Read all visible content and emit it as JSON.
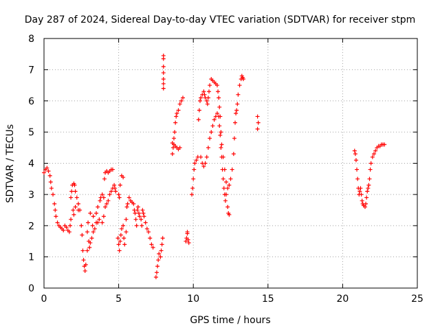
{
  "chart_data": {
    "type": "scatter",
    "title": "Day 287 of 2024, Sidereal Day-to-day VTEC variation (SDTVAR) for receiver stpm",
    "xlabel": "GPS time / hours",
    "ylabel": "SDTVAR / TECUs",
    "xlim": [
      0,
      25
    ],
    "ylim": [
      0,
      8
    ],
    "xticks": [
      0,
      5,
      10,
      15,
      20,
      25
    ],
    "yticks": [
      0,
      1,
      2,
      3,
      4,
      5,
      6,
      7,
      8
    ],
    "grid": true,
    "marker": "plus",
    "color": "#ff0000",
    "series": [
      {
        "name": "SDTVAR",
        "points": [
          [
            0.0,
            3.7
          ],
          [
            0.1,
            3.8
          ],
          [
            0.2,
            3.85
          ],
          [
            0.3,
            3.75
          ],
          [
            0.4,
            3.6
          ],
          [
            0.45,
            3.4
          ],
          [
            0.5,
            3.2
          ],
          [
            0.6,
            3.0
          ],
          [
            0.7,
            2.7
          ],
          [
            0.75,
            2.5
          ],
          [
            0.8,
            2.3
          ],
          [
            0.9,
            2.1
          ],
          [
            1.0,
            2.0
          ],
          [
            1.1,
            1.95
          ],
          [
            1.2,
            1.9
          ],
          [
            1.3,
            1.85
          ],
          [
            1.4,
            2.0
          ],
          [
            1.5,
            1.95
          ],
          [
            1.6,
            1.85
          ],
          [
            1.7,
            1.8
          ],
          [
            1.75,
            2.0
          ],
          [
            1.8,
            2.2
          ],
          [
            1.8,
            2.9
          ],
          [
            1.85,
            3.1
          ],
          [
            1.9,
            3.3
          ],
          [
            2.0,
            3.35
          ],
          [
            2.05,
            3.3
          ],
          [
            2.1,
            3.1
          ],
          [
            2.2,
            2.9
          ],
          [
            2.3,
            2.7
          ],
          [
            1.95,
            2.5
          ],
          [
            2.0,
            2.35
          ],
          [
            2.1,
            2.6
          ],
          [
            2.3,
            2.5
          ],
          [
            2.4,
            2.5
          ],
          [
            2.5,
            2.0
          ],
          [
            2.55,
            1.7
          ],
          [
            2.6,
            1.2
          ],
          [
            2.65,
            0.9
          ],
          [
            2.7,
            0.7
          ],
          [
            2.75,
            0.55
          ],
          [
            2.8,
            0.75
          ],
          [
            2.9,
            1.2
          ],
          [
            2.9,
            1.8
          ],
          [
            2.95,
            2.1
          ],
          [
            3.0,
            1.5
          ],
          [
            3.05,
            1.3
          ],
          [
            3.1,
            1.45
          ],
          [
            3.1,
            2.4
          ],
          [
            3.2,
            1.6
          ],
          [
            3.25,
            2.0
          ],
          [
            3.3,
            2.3
          ],
          [
            3.3,
            1.8
          ],
          [
            3.4,
            1.9
          ],
          [
            3.5,
            2.1
          ],
          [
            3.5,
            2.4
          ],
          [
            3.6,
            2.6
          ],
          [
            3.6,
            2.1
          ],
          [
            3.7,
            2.2
          ],
          [
            3.75,
            2.8
          ],
          [
            3.8,
            2.9
          ],
          [
            3.9,
            3.0
          ],
          [
            3.9,
            2.1
          ],
          [
            4.0,
            2.3
          ],
          [
            4.0,
            2.9
          ],
          [
            4.05,
            3.5
          ],
          [
            4.1,
            2.6
          ],
          [
            4.1,
            3.7
          ],
          [
            4.2,
            2.7
          ],
          [
            4.2,
            3.75
          ],
          [
            4.3,
            2.8
          ],
          [
            4.3,
            3.7
          ],
          [
            4.4,
            3.0
          ],
          [
            4.4,
            3.75
          ],
          [
            4.5,
            3.1
          ],
          [
            4.5,
            3.8
          ],
          [
            4.6,
            3.2
          ],
          [
            4.6,
            3.8
          ],
          [
            4.7,
            3.3
          ],
          [
            4.75,
            3.2
          ],
          [
            4.8,
            3.1
          ],
          [
            4.95,
            1.6
          ],
          [
            5.0,
            1.4
          ],
          [
            5.05,
            1.2
          ],
          [
            5.1,
            1.5
          ],
          [
            5.15,
            1.7
          ],
          [
            5.2,
            1.9
          ],
          [
            5.3,
            2.0
          ],
          [
            5.35,
            1.6
          ],
          [
            5.4,
            1.4
          ],
          [
            5.5,
            1.8
          ],
          [
            5.5,
            2.2
          ],
          [
            5.55,
            2.6
          ],
          [
            5.6,
            2.7
          ],
          [
            5.0,
            3.0
          ],
          [
            5.05,
            2.9
          ],
          [
            5.1,
            3.3
          ],
          [
            5.2,
            3.6
          ],
          [
            5.3,
            3.55
          ],
          [
            5.7,
            2.9
          ],
          [
            5.8,
            2.8
          ],
          [
            5.9,
            2.75
          ],
          [
            6.0,
            2.7
          ],
          [
            6.05,
            2.5
          ],
          [
            6.1,
            2.4
          ],
          [
            6.15,
            2.2
          ],
          [
            6.2,
            2.0
          ],
          [
            6.25,
            2.5
          ],
          [
            6.3,
            2.6
          ],
          [
            6.35,
            2.4
          ],
          [
            6.4,
            2.3
          ],
          [
            6.5,
            2.2
          ],
          [
            6.55,
            2.0
          ],
          [
            6.6,
            2.5
          ],
          [
            6.65,
            2.4
          ],
          [
            6.7,
            2.3
          ],
          [
            6.8,
            2.1
          ],
          [
            6.9,
            1.9
          ],
          [
            7.0,
            1.8
          ],
          [
            7.1,
            1.6
          ],
          [
            7.2,
            1.4
          ],
          [
            7.3,
            1.3
          ],
          [
            7.5,
            0.35
          ],
          [
            7.55,
            0.5
          ],
          [
            7.6,
            0.7
          ],
          [
            7.65,
            0.9
          ],
          [
            7.7,
            1.1
          ],
          [
            7.8,
            1.0
          ],
          [
            7.85,
            1.2
          ],
          [
            7.9,
            1.4
          ],
          [
            7.95,
            1.6
          ],
          [
            8.0,
            7.45
          ],
          [
            8.0,
            7.35
          ],
          [
            8.0,
            7.1
          ],
          [
            8.0,
            6.9
          ],
          [
            8.0,
            6.7
          ],
          [
            8.0,
            6.55
          ],
          [
            8.0,
            6.4
          ],
          [
            8.6,
            4.3
          ],
          [
            8.65,
            4.5
          ],
          [
            8.7,
            4.8
          ],
          [
            8.75,
            5.0
          ],
          [
            8.8,
            5.3
          ],
          [
            8.85,
            5.5
          ],
          [
            8.9,
            5.6
          ],
          [
            9.0,
            5.7
          ],
          [
            9.1,
            5.9
          ],
          [
            9.2,
            6.0
          ],
          [
            9.3,
            6.1
          ],
          [
            8.6,
            4.65
          ],
          [
            8.7,
            4.6
          ],
          [
            8.8,
            4.55
          ],
          [
            8.9,
            4.5
          ],
          [
            9.0,
            4.45
          ],
          [
            9.1,
            4.5
          ],
          [
            9.5,
            1.5
          ],
          [
            9.55,
            1.6
          ],
          [
            9.6,
            1.8
          ],
          [
            9.65,
            1.55
          ],
          [
            9.7,
            1.45
          ],
          [
            9.6,
            1.75
          ],
          [
            9.9,
            3.0
          ],
          [
            9.95,
            3.2
          ],
          [
            10.0,
            3.5
          ],
          [
            10.05,
            3.8
          ],
          [
            10.1,
            4.0
          ],
          [
            10.2,
            4.1
          ],
          [
            10.3,
            4.2
          ],
          [
            10.35,
            5.4
          ],
          [
            10.4,
            5.7
          ],
          [
            10.45,
            6.0
          ],
          [
            10.5,
            6.1
          ],
          [
            10.6,
            6.2
          ],
          [
            10.7,
            6.3
          ],
          [
            10.75,
            6.2
          ],
          [
            10.8,
            6.1
          ],
          [
            10.9,
            6.0
          ],
          [
            10.95,
            5.9
          ],
          [
            11.0,
            6.1
          ],
          [
            11.05,
            6.3
          ],
          [
            11.1,
            6.5
          ],
          [
            11.2,
            6.7
          ],
          [
            11.3,
            6.65
          ],
          [
            11.4,
            6.6
          ],
          [
            11.5,
            6.55
          ],
          [
            11.6,
            6.5
          ],
          [
            11.65,
            6.3
          ],
          [
            10.5,
            4.2
          ],
          [
            10.6,
            4.0
          ],
          [
            10.7,
            3.9
          ],
          [
            10.8,
            4.0
          ],
          [
            10.9,
            4.2
          ],
          [
            11.0,
            4.5
          ],
          [
            11.1,
            4.8
          ],
          [
            11.2,
            5.0
          ],
          [
            11.3,
            5.2
          ],
          [
            11.4,
            5.4
          ],
          [
            11.5,
            5.5
          ],
          [
            11.6,
            5.6
          ],
          [
            11.7,
            5.5
          ],
          [
            11.75,
            5.2
          ],
          [
            11.8,
            4.9
          ],
          [
            11.85,
            4.5
          ],
          [
            11.9,
            4.2
          ],
          [
            11.95,
            3.8
          ],
          [
            12.0,
            3.5
          ],
          [
            12.05,
            3.2
          ],
          [
            12.1,
            3.0
          ],
          [
            12.15,
            2.8
          ],
          [
            12.2,
            3.0
          ],
          [
            12.3,
            2.6
          ],
          [
            12.35,
            2.4
          ],
          [
            12.4,
            2.35
          ],
          [
            11.7,
            6.1
          ],
          [
            11.75,
            5.8
          ],
          [
            11.8,
            5.5
          ],
          [
            11.85,
            5.0
          ],
          [
            11.9,
            4.6
          ],
          [
            12.0,
            4.2
          ],
          [
            12.1,
            3.8
          ],
          [
            12.2,
            3.4
          ],
          [
            12.3,
            3.2
          ],
          [
            12.4,
            3.3
          ],
          [
            12.5,
            3.5
          ],
          [
            12.6,
            3.8
          ],
          [
            12.7,
            4.3
          ],
          [
            12.75,
            4.8
          ],
          [
            12.8,
            5.3
          ],
          [
            12.85,
            5.6
          ],
          [
            12.9,
            5.7
          ],
          [
            12.95,
            5.9
          ],
          [
            13.0,
            6.2
          ],
          [
            13.1,
            6.5
          ],
          [
            13.2,
            6.7
          ],
          [
            13.25,
            6.8
          ],
          [
            13.3,
            6.75
          ],
          [
            13.35,
            6.7
          ],
          [
            14.3,
            5.5
          ],
          [
            14.35,
            5.3
          ],
          [
            14.3,
            5.1
          ],
          [
            20.8,
            4.4
          ],
          [
            20.85,
            4.3
          ],
          [
            20.9,
            4.1
          ],
          [
            20.95,
            3.8
          ],
          [
            21.0,
            3.5
          ],
          [
            21.05,
            3.2
          ],
          [
            21.1,
            3.0
          ],
          [
            21.15,
            3.1
          ],
          [
            21.2,
            3.2
          ],
          [
            21.25,
            3.0
          ],
          [
            21.3,
            2.8
          ],
          [
            21.35,
            2.7
          ],
          [
            21.4,
            2.65
          ],
          [
            21.5,
            2.6
          ],
          [
            21.55,
            2.7
          ],
          [
            21.6,
            2.9
          ],
          [
            21.65,
            3.1
          ],
          [
            21.7,
            3.2
          ],
          [
            21.75,
            3.3
          ],
          [
            21.8,
            3.5
          ],
          [
            21.85,
            3.8
          ],
          [
            21.9,
            4.0
          ],
          [
            22.0,
            4.2
          ],
          [
            22.1,
            4.3
          ],
          [
            22.2,
            4.4
          ],
          [
            22.3,
            4.5
          ],
          [
            22.4,
            4.55
          ],
          [
            22.5,
            4.55
          ],
          [
            22.6,
            4.6
          ],
          [
            22.7,
            4.6
          ],
          [
            22.8,
            4.6
          ]
        ]
      }
    ]
  }
}
